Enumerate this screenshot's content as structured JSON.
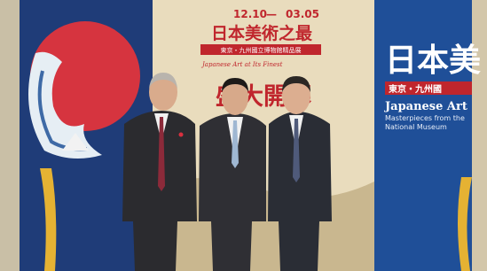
{
  "center_banner": {
    "date_start": "12.10",
    "date_end": "03.05",
    "title": "日本美術之最",
    "subtitle": "東京・九州國立博物館精品展",
    "english_title": "Japanese Art at Its Finest",
    "headline": "盛大開幕"
  },
  "right_banner": {
    "title": "日本美",
    "subtitle": "東京・九州國",
    "english_title": "Japanese Art",
    "english_line_1": "Masterpieces from the",
    "english_line_2": "National Museum"
  }
}
